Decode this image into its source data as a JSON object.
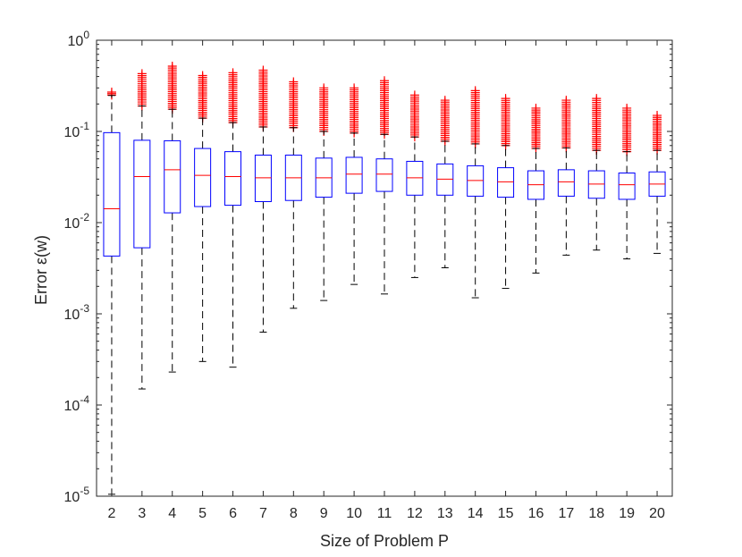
{
  "chart_data": {
    "type": "box",
    "title": "",
    "xlabel": "Size of Problem P",
    "ylabel": "Error ε(w)",
    "yscale": "log",
    "ylim": [
      1e-05,
      1
    ],
    "y_tick_labels": [
      {
        "value": 1e-05,
        "base": "10",
        "exp": "-5"
      },
      {
        "value": 0.0001,
        "base": "10",
        "exp": "-4"
      },
      {
        "value": 0.001,
        "base": "10",
        "exp": "-3"
      },
      {
        "value": 0.01,
        "base": "10",
        "exp": "-2"
      },
      {
        "value": 0.1,
        "base": "10",
        "exp": "-1"
      },
      {
        "value": 1,
        "base": "10",
        "exp": "0"
      }
    ],
    "categories": [
      "2",
      "3",
      "4",
      "5",
      "6",
      "7",
      "8",
      "9",
      "10",
      "11",
      "12",
      "13",
      "14",
      "15",
      "16",
      "17",
      "18",
      "19",
      "20"
    ],
    "boxes": [
      {
        "q1": 0.0043,
        "median": 0.0142,
        "q3": 0.097,
        "whisker_low": 1.05e-05,
        "whisker_high": 0.248,
        "outlier_low": 0.25,
        "outlier_high": 0.27
      },
      {
        "q1": 0.0053,
        "median": 0.032,
        "q3": 0.08,
        "whisker_low": 0.00015,
        "whisker_high": 0.19,
        "outlier_low": 0.19,
        "outlier_high": 0.43
      },
      {
        "q1": 0.0128,
        "median": 0.038,
        "q3": 0.079,
        "whisker_low": 0.00023,
        "whisker_high": 0.175,
        "outlier_low": 0.175,
        "outlier_high": 0.52
      },
      {
        "q1": 0.015,
        "median": 0.033,
        "q3": 0.065,
        "whisker_low": 0.0003,
        "whisker_high": 0.14,
        "outlier_low": 0.14,
        "outlier_high": 0.41
      },
      {
        "q1": 0.0155,
        "median": 0.032,
        "q3": 0.06,
        "whisker_low": 0.00026,
        "whisker_high": 0.125,
        "outlier_low": 0.125,
        "outlier_high": 0.44
      },
      {
        "q1": 0.017,
        "median": 0.031,
        "q3": 0.055,
        "whisker_low": 0.00063,
        "whisker_high": 0.112,
        "outlier_low": 0.112,
        "outlier_high": 0.47
      },
      {
        "q1": 0.0175,
        "median": 0.031,
        "q3": 0.055,
        "whisker_low": 0.00115,
        "whisker_high": 0.11,
        "outlier_low": 0.11,
        "outlier_high": 0.35
      },
      {
        "q1": 0.019,
        "median": 0.031,
        "q3": 0.051,
        "whisker_low": 0.0014,
        "whisker_high": 0.1,
        "outlier_low": 0.1,
        "outlier_high": 0.3
      },
      {
        "q1": 0.021,
        "median": 0.034,
        "q3": 0.052,
        "whisker_low": 0.0021,
        "whisker_high": 0.096,
        "outlier_low": 0.096,
        "outlier_high": 0.3
      },
      {
        "q1": 0.022,
        "median": 0.034,
        "q3": 0.05,
        "whisker_low": 0.00165,
        "whisker_high": 0.093,
        "outlier_low": 0.093,
        "outlier_high": 0.36
      },
      {
        "q1": 0.02,
        "median": 0.031,
        "q3": 0.047,
        "whisker_low": 0.0025,
        "whisker_high": 0.087,
        "outlier_low": 0.087,
        "outlier_high": 0.25
      },
      {
        "q1": 0.02,
        "median": 0.03,
        "q3": 0.044,
        "whisker_low": 0.0032,
        "whisker_high": 0.078,
        "outlier_low": 0.078,
        "outlier_high": 0.22
      },
      {
        "q1": 0.0195,
        "median": 0.029,
        "q3": 0.042,
        "whisker_low": 0.0015,
        "whisker_high": 0.073,
        "outlier_low": 0.073,
        "outlier_high": 0.28
      },
      {
        "q1": 0.019,
        "median": 0.028,
        "q3": 0.04,
        "whisker_low": 0.0019,
        "whisker_high": 0.07,
        "outlier_low": 0.07,
        "outlier_high": 0.23
      },
      {
        "q1": 0.018,
        "median": 0.026,
        "q3": 0.037,
        "whisker_low": 0.0028,
        "whisker_high": 0.065,
        "outlier_low": 0.065,
        "outlier_high": 0.18
      },
      {
        "q1": 0.0195,
        "median": 0.028,
        "q3": 0.038,
        "whisker_low": 0.0044,
        "whisker_high": 0.066,
        "outlier_low": 0.066,
        "outlier_high": 0.22
      },
      {
        "q1": 0.0185,
        "median": 0.0265,
        "q3": 0.037,
        "whisker_low": 0.005,
        "whisker_high": 0.062,
        "outlier_low": 0.062,
        "outlier_high": 0.23
      },
      {
        "q1": 0.018,
        "median": 0.026,
        "q3": 0.035,
        "whisker_low": 0.004,
        "whisker_high": 0.06,
        "outlier_low": 0.06,
        "outlier_high": 0.18
      },
      {
        "q1": 0.0195,
        "median": 0.0265,
        "q3": 0.036,
        "whisker_low": 0.0046,
        "whisker_high": 0.062,
        "outlier_low": 0.062,
        "outlier_high": 0.15
      }
    ],
    "colors": {
      "box": "#0000ff",
      "median": "#ff0000",
      "whisker": "#000000",
      "outlier": "#ff0000",
      "axis": "#262626"
    },
    "grid": false,
    "legend": "none"
  }
}
